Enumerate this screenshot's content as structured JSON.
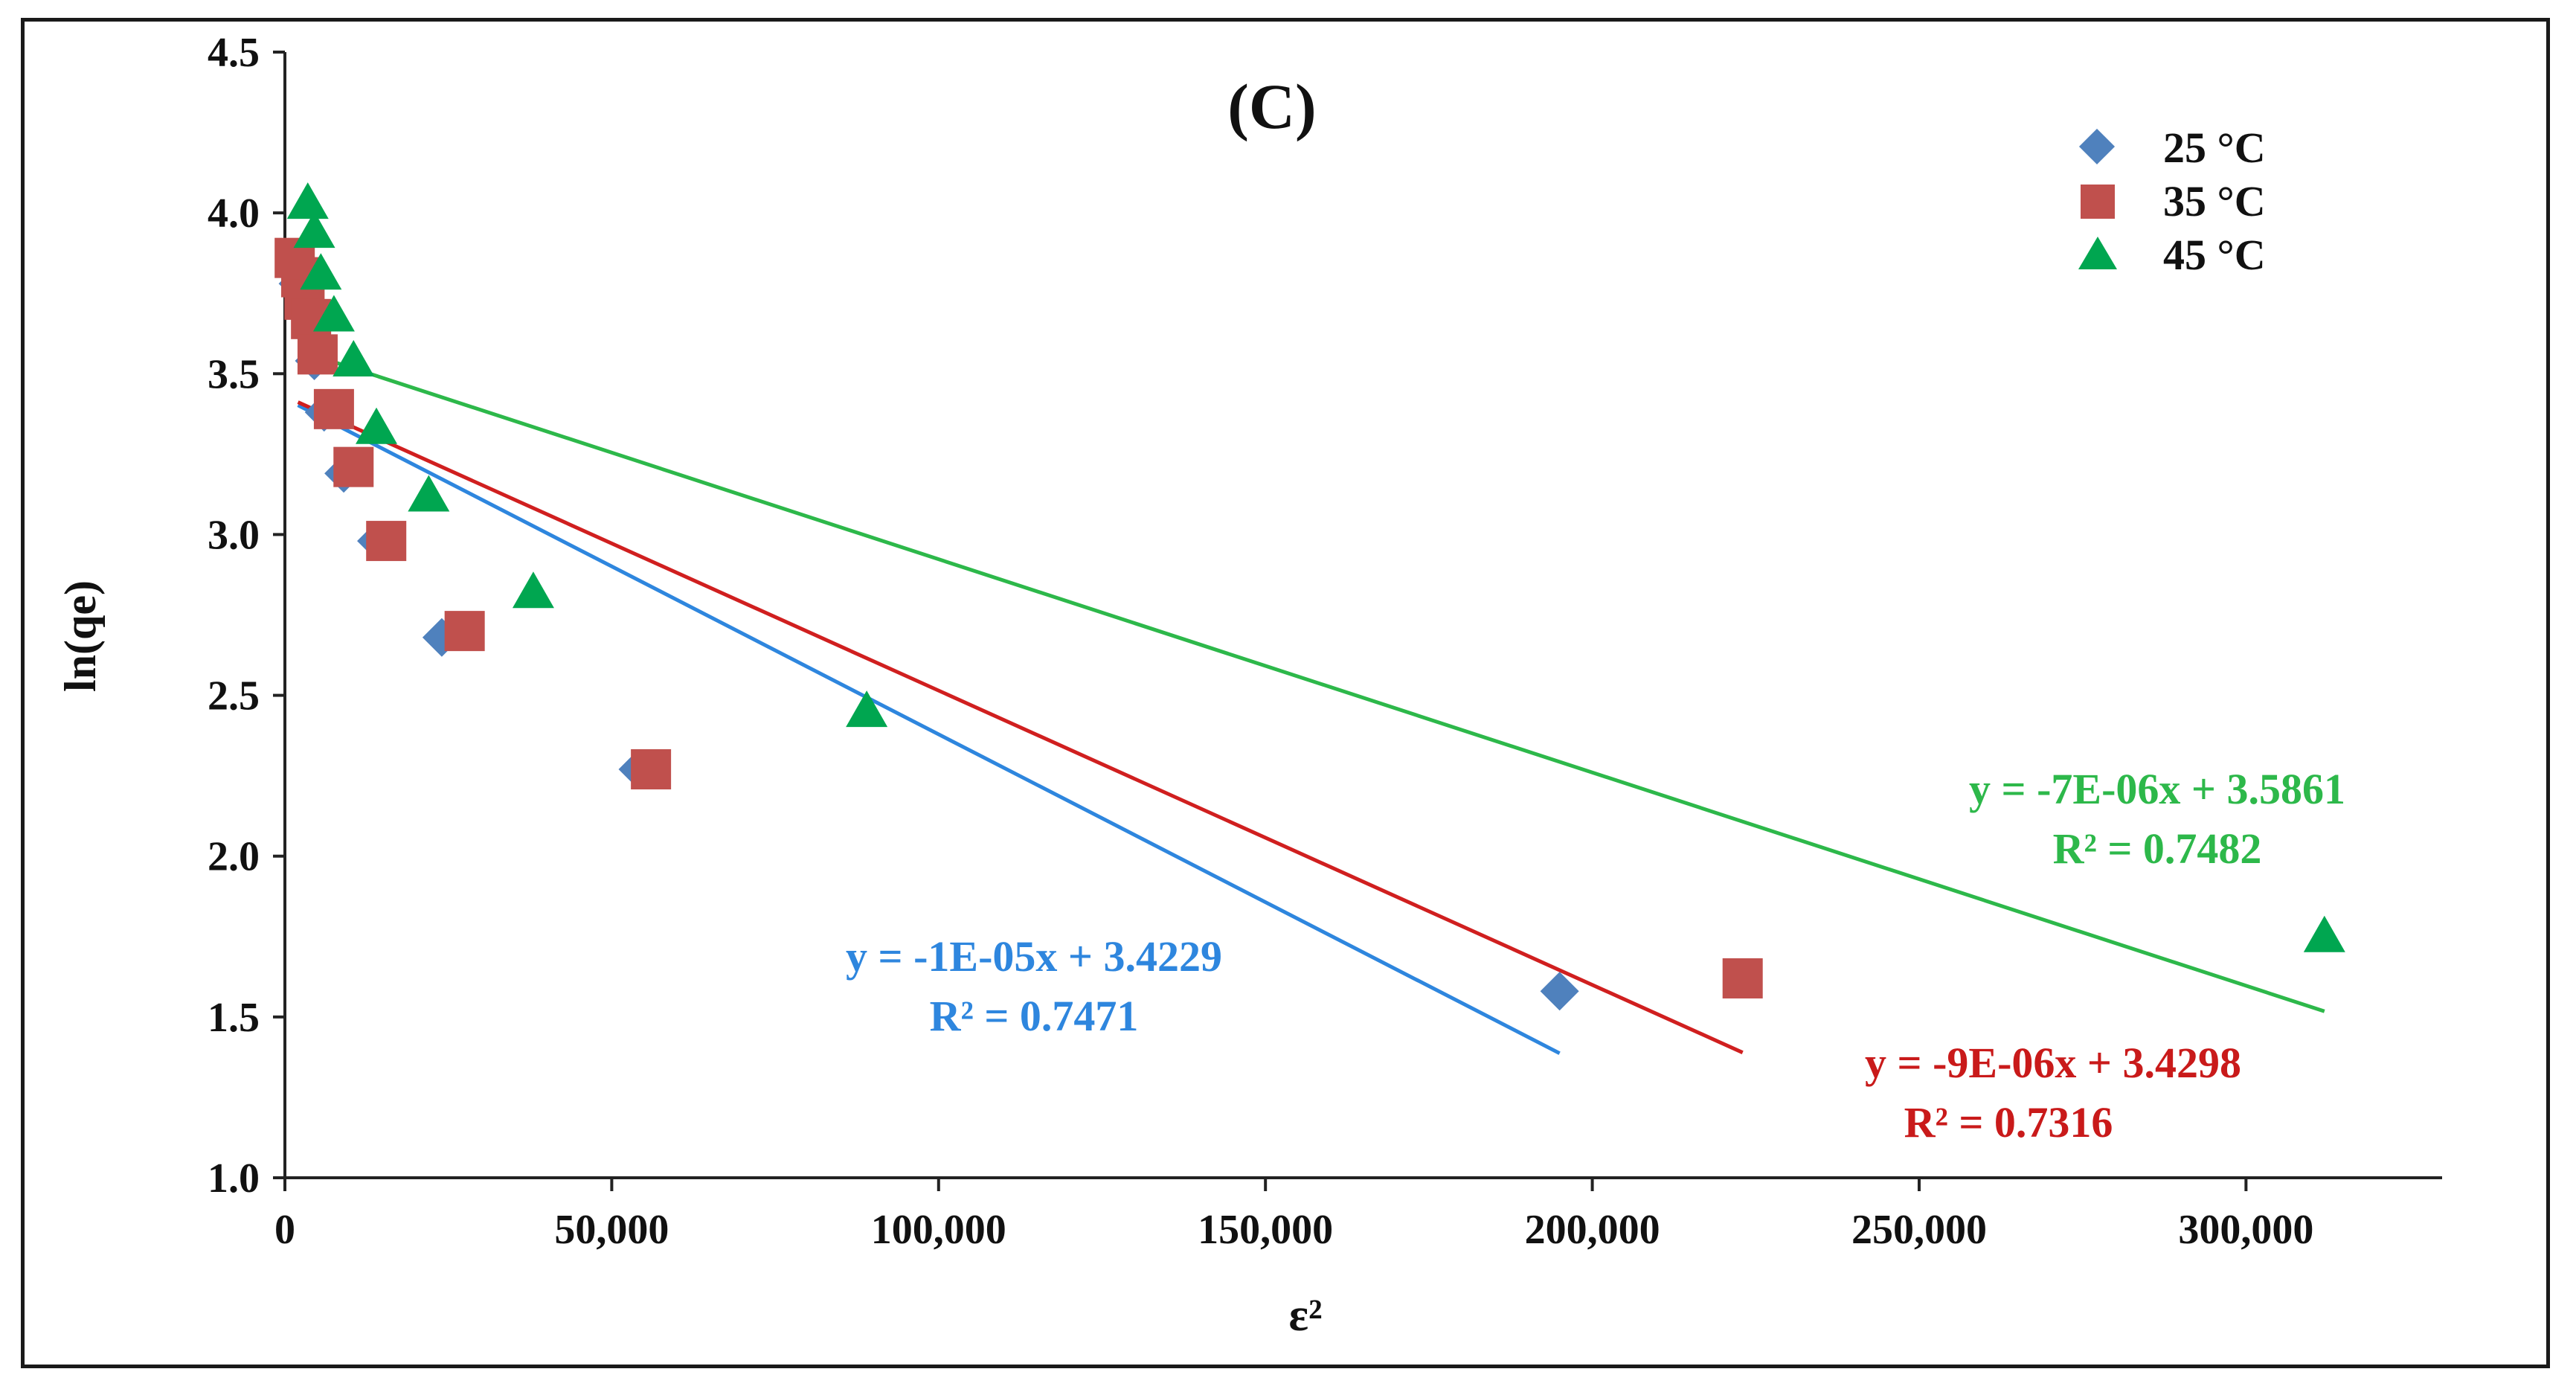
{
  "chart_data": {
    "type": "scatter",
    "panel_label": "(C)",
    "xlabel": "ε²",
    "ylabel": "ln(qe)",
    "xlim": [
      0,
      330000
    ],
    "ylim": [
      1.0,
      4.5
    ],
    "xticks": [
      0,
      50000,
      100000,
      150000,
      200000,
      250000,
      300000
    ],
    "xtick_labels": [
      "0",
      "50,000",
      "100,000",
      "150,000",
      "200,000",
      "250,000",
      "300,000"
    ],
    "yticks": [
      1.0,
      1.5,
      2.0,
      2.5,
      3.0,
      3.5,
      4.0,
      4.5
    ],
    "ytick_labels": [
      "1.0",
      "1.5",
      "2.0",
      "2.5",
      "3.0",
      "3.5",
      "4.0",
      "4.5"
    ],
    "grid": false,
    "legend_position": "top-right",
    "series": [
      {
        "name": "25 °C",
        "marker": "diamond",
        "color": "#4F81BD",
        "line_color": "#2E86DE",
        "points": [
          {
            "x": 1500,
            "y": 3.85
          },
          {
            "x": 2000,
            "y": 3.78
          },
          {
            "x": 3000,
            "y": 3.7
          },
          {
            "x": 4500,
            "y": 3.54
          },
          {
            "x": 6000,
            "y": 3.38
          },
          {
            "x": 9000,
            "y": 3.19
          },
          {
            "x": 14000,
            "y": 2.98
          },
          {
            "x": 24000,
            "y": 2.68
          },
          {
            "x": 54000,
            "y": 2.27
          },
          {
            "x": 195000,
            "y": 1.58
          }
        ],
        "trendline": {
          "slope": -1.044e-05,
          "intercept": 3.4229,
          "x_start": 2000,
          "x_end": 195000
        },
        "equation": "y = -1E-05x + 3.4229",
        "r2": "R² = 0.7471"
      },
      {
        "name": "35 °C",
        "marker": "square",
        "color": "#C0504D",
        "line_color": "#D01F1F",
        "points": [
          {
            "x": 1500,
            "y": 3.86
          },
          {
            "x": 2500,
            "y": 3.8
          },
          {
            "x": 3000,
            "y": 3.73
          },
          {
            "x": 4000,
            "y": 3.67
          },
          {
            "x": 5000,
            "y": 3.56
          },
          {
            "x": 7500,
            "y": 3.39
          },
          {
            "x": 10500,
            "y": 3.21
          },
          {
            "x": 15500,
            "y": 2.98
          },
          {
            "x": 27500,
            "y": 2.7
          },
          {
            "x": 56000,
            "y": 2.27
          },
          {
            "x": 223000,
            "y": 1.62
          }
        ],
        "trendline": {
          "slope": -9.15e-06,
          "intercept": 3.4298,
          "x_start": 2000,
          "x_end": 223000
        },
        "equation": "y = -9E-06x + 3.4298",
        "r2": "R² = 0.7316"
      },
      {
        "name": "45 °C",
        "marker": "triangle",
        "color": "#00A650",
        "line_color": "#2DB84A",
        "points": [
          {
            "x": 3500,
            "y": 4.03
          },
          {
            "x": 4500,
            "y": 3.94
          },
          {
            "x": 5500,
            "y": 3.81
          },
          {
            "x": 7500,
            "y": 3.68
          },
          {
            "x": 10500,
            "y": 3.54
          },
          {
            "x": 14000,
            "y": 3.33
          },
          {
            "x": 22000,
            "y": 3.12
          },
          {
            "x": 38000,
            "y": 2.82
          },
          {
            "x": 89000,
            "y": 2.45
          },
          {
            "x": 312000,
            "y": 1.75
          }
        ],
        "trendline": {
          "slope": -6.63e-06,
          "intercept": 3.5861,
          "x_start": 5000,
          "x_end": 312000
        },
        "equation": "y = -7E-06x + 3.5861",
        "r2": "R² = 0.7482"
      }
    ]
  }
}
